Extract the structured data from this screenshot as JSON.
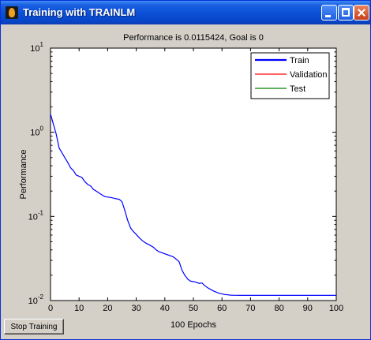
{
  "window": {
    "title": "Training with TRAINLM"
  },
  "stop_button": {
    "label": "Stop Training"
  },
  "chart_data": {
    "type": "line",
    "title": "Performance is 0.0115424, Goal is 0",
    "xlabel": "100 Epochs",
    "ylabel": "Performance",
    "xlim": [
      0,
      100
    ],
    "ylim": [
      0.01,
      10
    ],
    "yscale": "log",
    "x_ticks": [
      "0",
      "10",
      "20",
      "30",
      "40",
      "50",
      "60",
      "70",
      "80",
      "90",
      "100"
    ],
    "y_ticks": [
      {
        "base": "10",
        "exp": "1"
      },
      {
        "base": "10",
        "exp": "0"
      },
      {
        "base": "10",
        "exp": "-1"
      },
      {
        "base": "10",
        "exp": "-2"
      }
    ],
    "legend_position": "top-right",
    "grid": false,
    "series": [
      {
        "name": "Train",
        "color": "#0000ff",
        "x": [
          0,
          1,
          2,
          3,
          4,
          5,
          6,
          7,
          8,
          9,
          10,
          11,
          12,
          13,
          14,
          15,
          16,
          17,
          18,
          19,
          20,
          21,
          22,
          23,
          24,
          25,
          26,
          27,
          28,
          29,
          30,
          31,
          32,
          33,
          34,
          35,
          36,
          37,
          38,
          39,
          40,
          41,
          42,
          43,
          44,
          45,
          46,
          47,
          48,
          49,
          50,
          51,
          52,
          53,
          54,
          55,
          56,
          57,
          58,
          59,
          60,
          61,
          62,
          63,
          64,
          65,
          66,
          67,
          68,
          69,
          70,
          75,
          80,
          85,
          90,
          95,
          100
        ],
        "y": [
          1.65,
          1.25,
          0.95,
          0.65,
          0.57,
          0.5,
          0.44,
          0.38,
          0.35,
          0.31,
          0.3,
          0.29,
          0.26,
          0.24,
          0.23,
          0.21,
          0.2,
          0.19,
          0.18,
          0.172,
          0.17,
          0.168,
          0.165,
          0.162,
          0.16,
          0.15,
          0.118,
          0.09,
          0.073,
          0.066,
          0.061,
          0.056,
          0.052,
          0.049,
          0.047,
          0.045,
          0.043,
          0.04,
          0.038,
          0.037,
          0.036,
          0.035,
          0.034,
          0.033,
          0.031,
          0.029,
          0.023,
          0.02,
          0.018,
          0.017,
          0.0168,
          0.0165,
          0.016,
          0.0162,
          0.015,
          0.0142,
          0.0136,
          0.013,
          0.0126,
          0.0122,
          0.012,
          0.0118,
          0.0117,
          0.0116,
          0.01156,
          0.01155,
          0.01154,
          0.01154,
          0.01154,
          0.01154,
          0.01154,
          0.01154,
          0.01154,
          0.01154,
          0.01154,
          0.01154,
          0.01154
        ]
      },
      {
        "name": "Validation",
        "color": "#ff0000",
        "x": [],
        "y": []
      },
      {
        "name": "Test",
        "color": "#008000",
        "x": [],
        "y": []
      }
    ]
  }
}
